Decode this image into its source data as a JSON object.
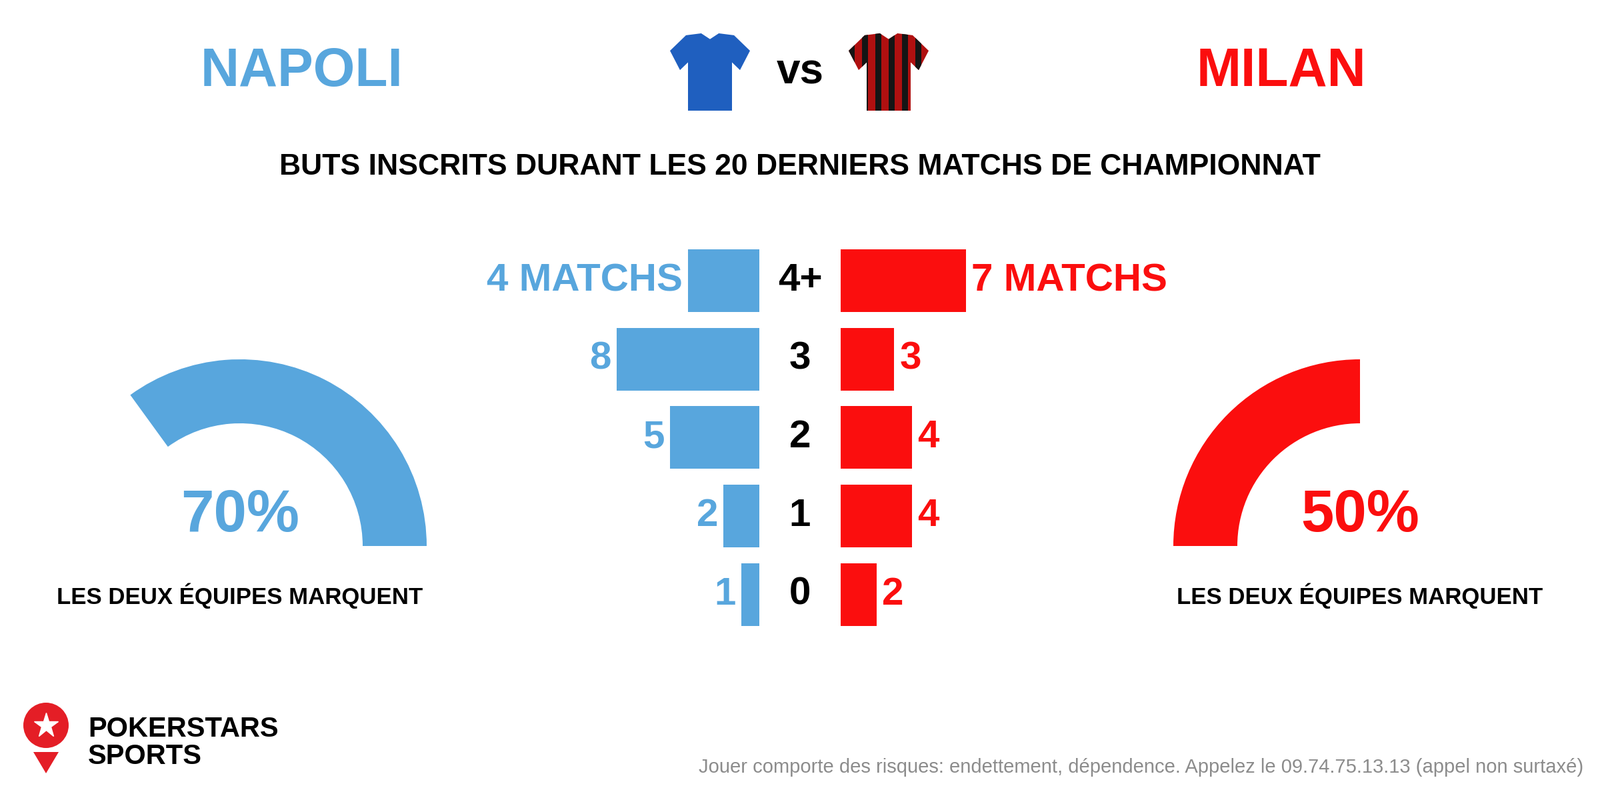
{
  "header": {
    "vs": "vs"
  },
  "chart_data": [
    {
      "type": "bar",
      "orientation": "horizontal",
      "title": "BUTS INSCRITS DURANT LES 20 DERNIERS MATCHS DE CHAMPIONNAT",
      "categories": [
        "4+",
        "3",
        "2",
        "1",
        "0"
      ],
      "series": [
        {
          "name": "NAPOLI",
          "color": "#58a6dd",
          "values": [
            4,
            8,
            5,
            2,
            1
          ],
          "value_labels": [
            "4 MATCHS",
            "8",
            "5",
            "2",
            "1"
          ]
        },
        {
          "name": "MILAN",
          "color": "#fb0e0e",
          "values": [
            7,
            3,
            4,
            4,
            2
          ],
          "value_labels": [
            "7 MATCHS",
            "3",
            "4",
            "4",
            "2"
          ]
        }
      ],
      "xlim": [
        0,
        10
      ],
      "data_labels": true,
      "tick_labels": false
    },
    {
      "type": "gauge",
      "title": "LES DEUX ÉQUIPES MARQUENT",
      "value": 70,
      "value_labels": "70%",
      "range": [
        0,
        100
      ],
      "color": "#58a6dd"
    },
    {
      "type": "gauge",
      "title": "LES DEUX ÉQUIPES MARQUENT",
      "value": 50,
      "value_labels": "50%",
      "range": [
        0,
        100
      ],
      "color": "#fb0e0e"
    }
  ],
  "footer": {
    "brand": [
      "POKERSTARS",
      "SPORTS"
    ],
    "disclaimer": "Jouer comporte des risques: endettement, dépendence. Appelez le 09.74.75.13.13 (appel non surtaxé)"
  }
}
